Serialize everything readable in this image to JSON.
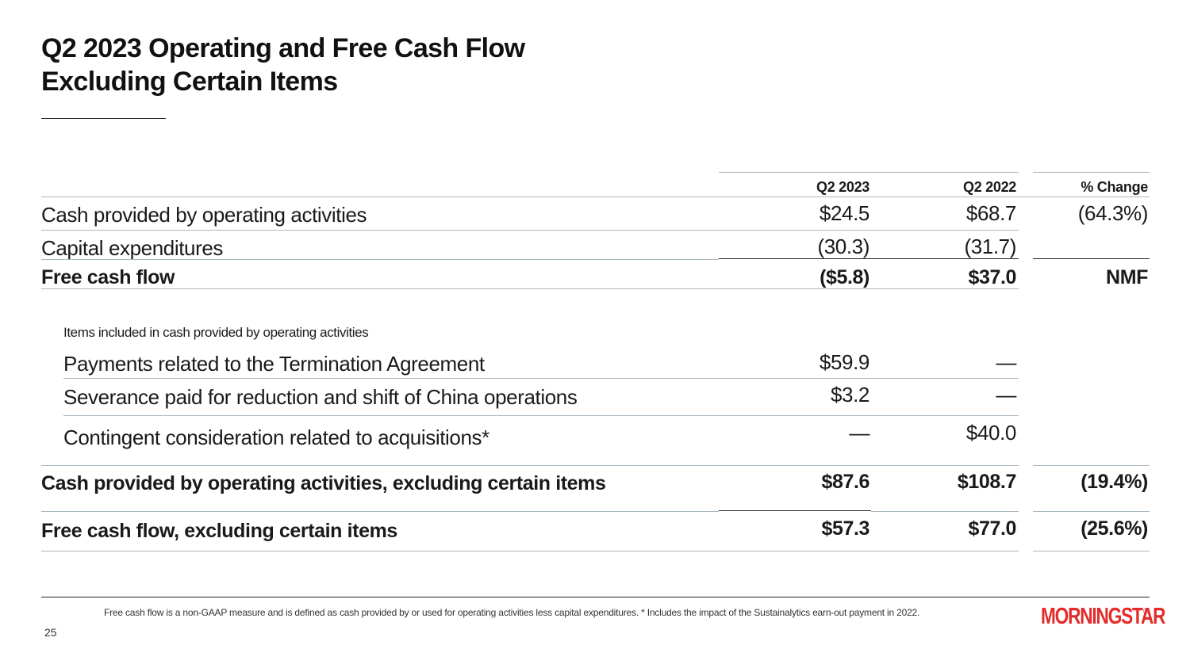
{
  "title": {
    "line1": "Q2 2023 Operating and Free Cash Flow",
    "line2": "Excluding Certain Items"
  },
  "table": {
    "headers": {
      "q2_2023": "Q2 2023",
      "q2_2022": "Q2 2022",
      "change": "% Change"
    },
    "rows": {
      "cfo": {
        "label": "Cash provided by operating activities",
        "q2_2023": "$24.5",
        "q2_2022": "$68.7",
        "change": "(64.3%)"
      },
      "capex": {
        "label": "Capital expenditures",
        "q2_2023": "(30.3)",
        "q2_2022": "(31.7)",
        "change": ""
      },
      "fcf": {
        "label": "Free cash flow",
        "q2_2023": "($5.8)",
        "q2_2022": "$37.0",
        "change": "NMF"
      },
      "items_heading": {
        "label": "Items included in cash provided by operating activities"
      },
      "termination": {
        "label": "Payments related to the Termination Agreement",
        "q2_2023": "$59.9",
        "q2_2022": "—",
        "change": ""
      },
      "severance": {
        "label": "Severance paid for reduction and shift of China operations",
        "q2_2023": "$3.2",
        "q2_2022": "—",
        "change": ""
      },
      "contingent": {
        "label": "Contingent consideration related to acquisitions*",
        "q2_2023": "—",
        "q2_2022": "$40.0",
        "change": ""
      },
      "cfo_excl": {
        "label": "Cash provided by operating activities, excluding certain items",
        "q2_2023": "$87.6",
        "q2_2022": "$108.7",
        "change": "(19.4%)"
      },
      "fcf_excl": {
        "label": "Free cash flow, excluding certain items",
        "q2_2023": "$57.3",
        "q2_2022": "$77.0",
        "change": "(25.6%)"
      }
    }
  },
  "footnote": "Free cash flow is a non-GAAP measure and is defined as cash provided by or used for operating activities less capital expenditures. * Includes the impact of the Sustainalytics earn-out payment in 2022.",
  "page_number": "25",
  "logo": {
    "text": "MORNINGSTAR",
    "mark": "®",
    "color": "#e32b2b"
  }
}
